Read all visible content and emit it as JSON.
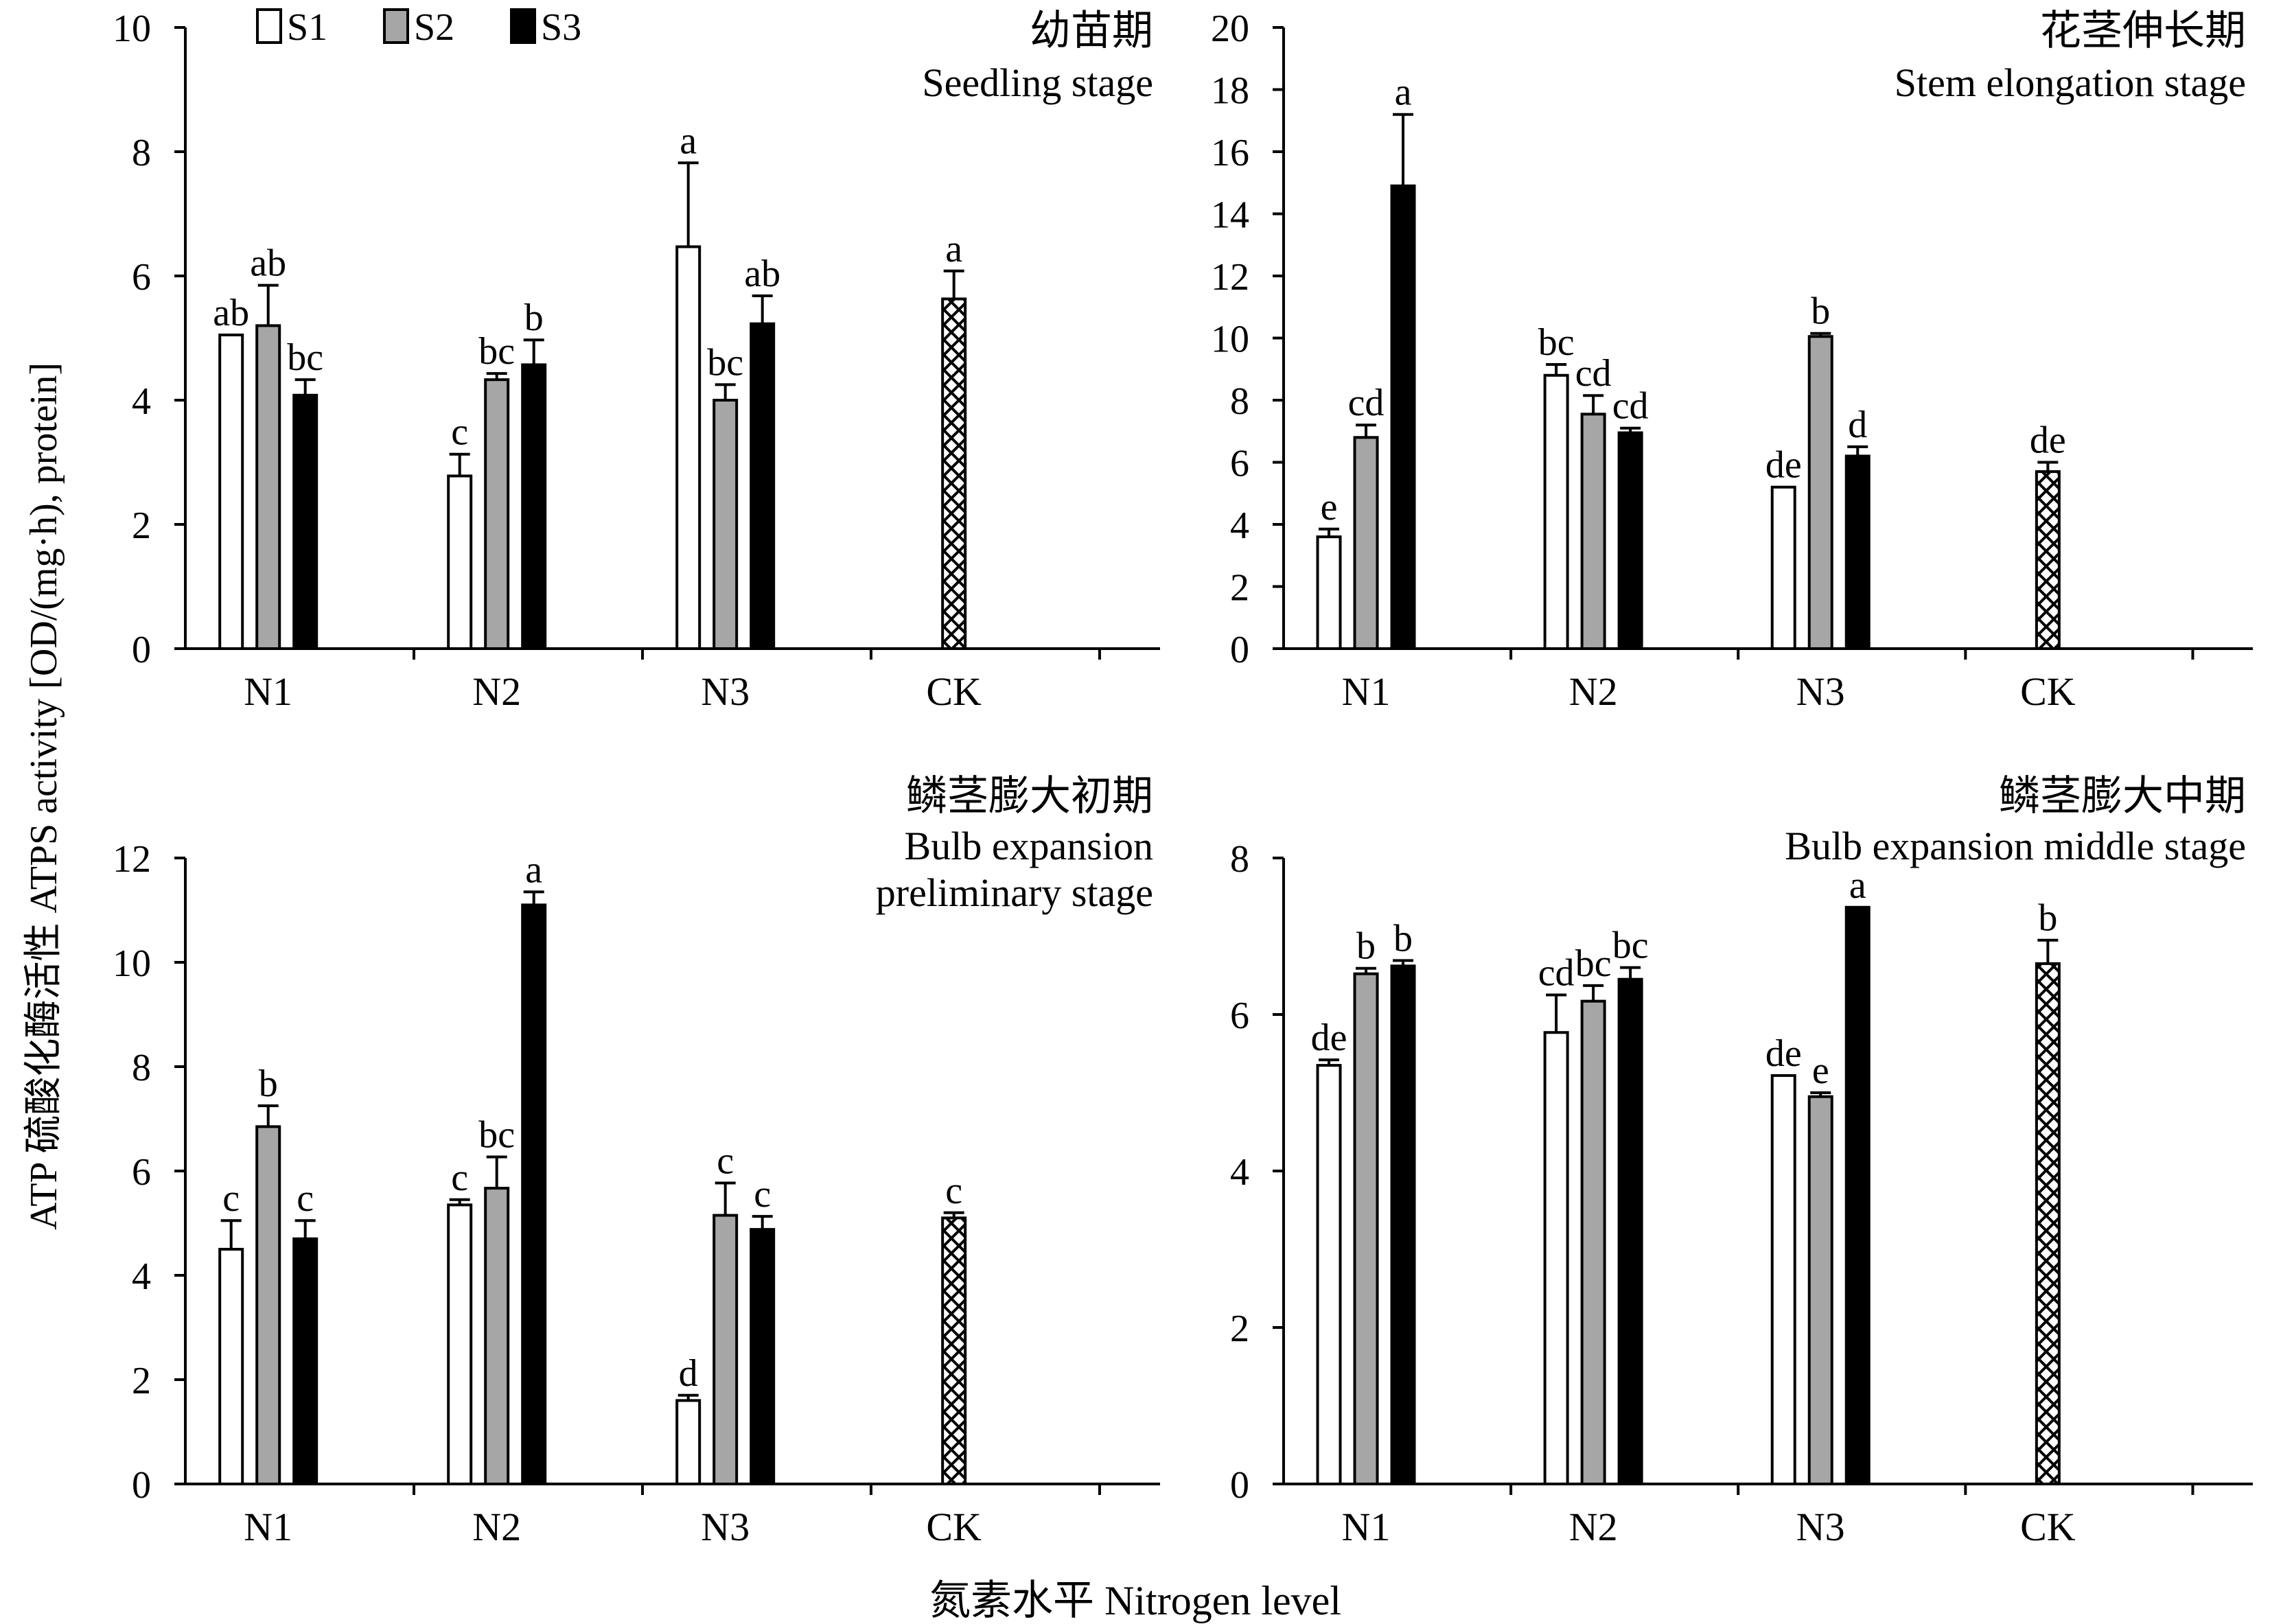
{
  "figure": {
    "ylabel": "ATP 硫酸化酶活性 ATPS activity [OD/(mg·h), protein]",
    "xlabel": "氮素水平 Nitrogen level",
    "legend": [
      {
        "name": "S1",
        "color": "#ffffff"
      },
      {
        "name": "S2",
        "color": "#a6a6a6"
      },
      {
        "name": "S3",
        "color": "#000000"
      }
    ],
    "ck_fill": "crosshatch",
    "colors": {
      "S1": "#ffffff",
      "S2": "#a6a6a6",
      "S3": "#000000",
      "axis": "#000000"
    }
  },
  "chart_data": [
    {
      "type": "bar",
      "title_cn": "幼苗期",
      "title_en": [
        "Seedling stage"
      ],
      "categories": [
        "N1",
        "N2",
        "N3",
        "CK"
      ],
      "ylim": [
        0,
        10
      ],
      "yticks": [
        0,
        2,
        4,
        6,
        8,
        10
      ],
      "series": [
        {
          "name": "S1",
          "values": [
            5.05,
            2.78,
            6.47,
            null
          ],
          "errors": [
            0,
            0.35,
            1.35,
            null
          ],
          "labels": [
            "ab",
            "c",
            "a",
            null
          ]
        },
        {
          "name": "S2",
          "values": [
            5.2,
            4.33,
            4.0,
            null
          ],
          "errors": [
            0.65,
            0.1,
            0.25,
            null
          ],
          "labels": [
            "ab",
            "bc",
            "bc",
            null
          ]
        },
        {
          "name": "S3",
          "values": [
            4.08,
            4.57,
            5.23,
            null
          ],
          "errors": [
            0.25,
            0.4,
            0.45,
            null
          ],
          "labels": [
            "bc",
            "b",
            "ab",
            null
          ]
        },
        {
          "name": "CK",
          "values": [
            null,
            null,
            null,
            5.63
          ],
          "errors": [
            null,
            null,
            null,
            0.45
          ],
          "labels": [
            null,
            null,
            null,
            "a"
          ]
        }
      ]
    },
    {
      "type": "bar",
      "title_cn": "花茎伸长期",
      "title_en": [
        "Stem elongation stage"
      ],
      "categories": [
        "N1",
        "N2",
        "N3",
        "CK"
      ],
      "ylim": [
        0,
        20
      ],
      "yticks": [
        0,
        2,
        4,
        6,
        8,
        10,
        12,
        14,
        16,
        18,
        20
      ],
      "series": [
        {
          "name": "S1",
          "values": [
            3.6,
            8.8,
            5.2,
            null
          ],
          "errors": [
            0.25,
            0.35,
            0,
            null
          ],
          "labels": [
            "e",
            "bc",
            "de",
            null
          ]
        },
        {
          "name": "S2",
          "values": [
            6.8,
            7.55,
            10.05,
            null
          ],
          "errors": [
            0.4,
            0.6,
            0.1,
            null
          ],
          "labels": [
            "cd",
            "cd",
            "b",
            null
          ]
        },
        {
          "name": "S3",
          "values": [
            14.9,
            6.95,
            6.2,
            null
          ],
          "errors": [
            2.3,
            0.15,
            0.3,
            null
          ],
          "labels": [
            "a",
            "cd",
            "d",
            null
          ]
        },
        {
          "name": "CK",
          "values": [
            null,
            null,
            null,
            5.7
          ],
          "errors": [
            null,
            null,
            null,
            0.3
          ],
          "labels": [
            null,
            null,
            null,
            "de"
          ]
        }
      ]
    },
    {
      "type": "bar",
      "title_cn": "鳞茎膨大初期",
      "title_en": [
        "Bulb expansion",
        "preliminary stage"
      ],
      "categories": [
        "N1",
        "N2",
        "N3",
        "CK"
      ],
      "ylim": [
        0,
        12
      ],
      "yticks": [
        0,
        2,
        4,
        6,
        8,
        10,
        12
      ],
      "series": [
        {
          "name": "S1",
          "values": [
            4.5,
            5.35,
            1.6,
            null
          ],
          "errors": [
            0.55,
            0.1,
            0.1,
            null
          ],
          "labels": [
            "c",
            "c",
            "d",
            null
          ]
        },
        {
          "name": "S2",
          "values": [
            6.85,
            5.67,
            5.15,
            null
          ],
          "errors": [
            0.4,
            0.6,
            0.62,
            null
          ],
          "labels": [
            "b",
            "bc",
            "c",
            null
          ]
        },
        {
          "name": "S3",
          "values": [
            4.7,
            11.1,
            4.88,
            null
          ],
          "errors": [
            0.35,
            0.25,
            0.25,
            null
          ],
          "labels": [
            "c",
            "a",
            "c",
            null
          ]
        },
        {
          "name": "CK",
          "values": [
            null,
            null,
            null,
            5.1
          ],
          "errors": [
            null,
            null,
            null,
            0.1
          ],
          "labels": [
            null,
            null,
            null,
            "c"
          ]
        }
      ]
    },
    {
      "type": "bar",
      "title_cn": "鳞茎膨大中期",
      "title_en": [
        "Bulb expansion middle stage"
      ],
      "categories": [
        "N1",
        "N2",
        "N3",
        "CK"
      ],
      "ylim": [
        0,
        8
      ],
      "yticks": [
        0,
        2,
        4,
        6,
        8
      ],
      "series": [
        {
          "name": "S1",
          "values": [
            5.35,
            5.77,
            5.22,
            null
          ],
          "errors": [
            0.07,
            0.48,
            0,
            null
          ],
          "labels": [
            "de",
            "cd",
            "de",
            null
          ]
        },
        {
          "name": "S2",
          "values": [
            6.52,
            6.17,
            4.95,
            null
          ],
          "errors": [
            0.07,
            0.2,
            0.05,
            null
          ],
          "labels": [
            "b",
            "bc",
            "e",
            null
          ]
        },
        {
          "name": "S3",
          "values": [
            6.62,
            6.45,
            7.37,
            null
          ],
          "errors": [
            0.07,
            0.15,
            0,
            null
          ],
          "labels": [
            "b",
            "bc",
            "a",
            null
          ]
        },
        {
          "name": "CK",
          "values": [
            null,
            null,
            null,
            6.65
          ],
          "errors": [
            null,
            null,
            null,
            0.3
          ],
          "labels": [
            null,
            null,
            null,
            "b"
          ]
        }
      ]
    }
  ]
}
